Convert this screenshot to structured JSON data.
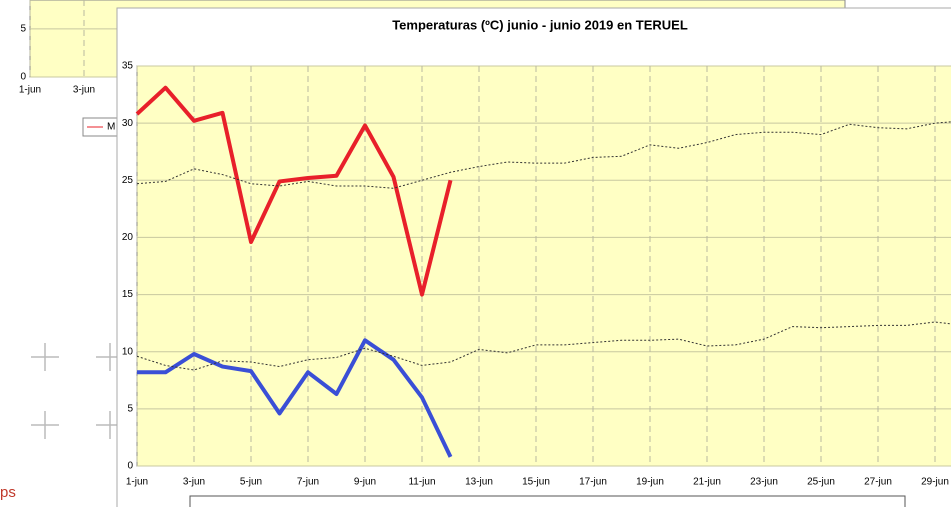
{
  "chart_data": [
    {
      "type": "line",
      "title": "Temperaturas (ºC) junio - junio 2019 en TERUEL",
      "categories": [
        "1-jun",
        null,
        "3-jun",
        null,
        "5-jun",
        null,
        "7-jun",
        null,
        "9-jun",
        null,
        "11-jun",
        null,
        "13-jun",
        null,
        "15-jun",
        null,
        "17-jun",
        null,
        "19-jun",
        null,
        "21-jun",
        null,
        "23-jun",
        null,
        "25-jun",
        null,
        "27-jun",
        null,
        "29-jun",
        null
      ],
      "series": [
        {
          "color": "#e8202a",
          "dash": false,
          "values": [
            30.8,
            33.1,
            30.2,
            30.9,
            19.6,
            24.9,
            25.2,
            25.4,
            29.8,
            25.3,
            15.0,
            25.0,
            null,
            null,
            null,
            null,
            null,
            null,
            null,
            null,
            null,
            null,
            null,
            null,
            null,
            null,
            null,
            null,
            null,
            null
          ]
        },
        {
          "color": "#3a4fd6",
          "dash": false,
          "values": [
            8.2,
            8.2,
            9.8,
            8.7,
            8.3,
            4.6,
            8.2,
            6.3,
            11.0,
            9.3,
            6.0,
            0.8,
            null,
            null,
            null,
            null,
            null,
            null,
            null,
            null,
            null,
            null,
            null,
            null,
            null,
            null,
            null,
            null,
            null,
            null
          ]
        },
        {
          "color": "#333333",
          "dash": true,
          "values": [
            24.7,
            24.9,
            26.0,
            25.5,
            24.7,
            24.5,
            24.9,
            24.5,
            24.5,
            24.3,
            25.0,
            25.7,
            26.2,
            26.6,
            26.5,
            26.5,
            27.0,
            27.1,
            28.1,
            27.8,
            28.3,
            29.0,
            29.2,
            29.2,
            29.0,
            29.9,
            29.6,
            29.5,
            30.0,
            30.2
          ]
        },
        {
          "color": "#333333",
          "dash": true,
          "values": [
            9.6,
            8.8,
            8.4,
            9.2,
            9.1,
            8.7,
            9.3,
            9.5,
            10.3,
            9.6,
            8.8,
            9.1,
            10.2,
            9.9,
            10.6,
            10.6,
            10.8,
            11.0,
            11.0,
            11.1,
            10.5,
            10.6,
            11.1,
            12.2,
            12.1,
            12.2,
            12.3,
            12.3,
            12.6,
            12.3
          ]
        }
      ],
      "ylim": [
        0,
        35
      ],
      "yticks": [
        0,
        5,
        10,
        15,
        20,
        25,
        30,
        35
      ],
      "grid": true
    },
    {
      "type": "line",
      "categories": [
        "1-jun",
        null,
        "3-jun"
      ],
      "ylim": [
        0,
        8
      ],
      "yticks": [
        0,
        5
      ],
      "legend_text": "M",
      "grid": true
    }
  ],
  "other_text": "ps"
}
